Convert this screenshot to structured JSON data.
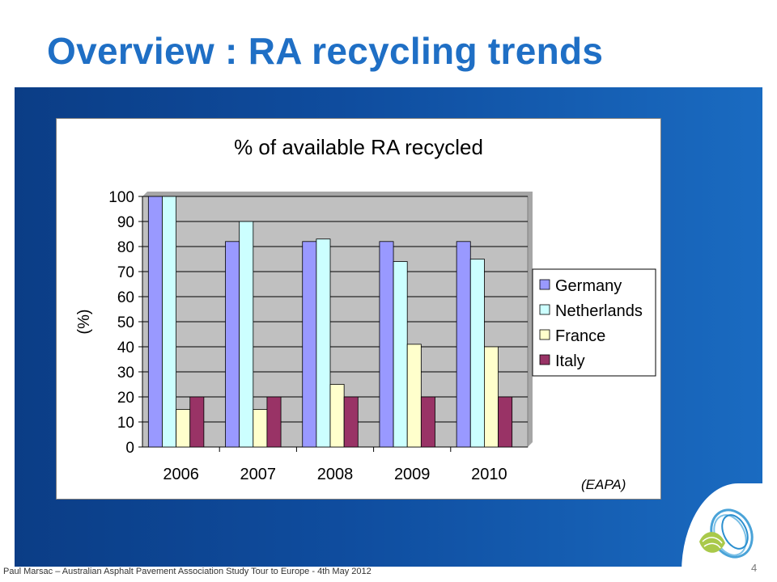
{
  "slide": {
    "title": "Overview : RA recycling trends",
    "footer": "Paul Marsac – Australian Asphalt Pavement Association Study Tour to Europe - 4th May 2012",
    "page_number": "4"
  },
  "chart_data": {
    "type": "bar",
    "title": "% of available RA recycled",
    "xlabel": "",
    "ylabel": "(%)",
    "ylim": [
      0,
      100
    ],
    "yticks": [
      0,
      10,
      20,
      30,
      40,
      50,
      60,
      70,
      80,
      90,
      100
    ],
    "categories": [
      "2006",
      "2007",
      "2008",
      "2009",
      "2010"
    ],
    "series": [
      {
        "name": "Germany",
        "color": "#9999ff",
        "values": [
          100,
          82,
          82,
          82,
          82
        ]
      },
      {
        "name": "Netherlands",
        "color": "#ccffff",
        "values": [
          100,
          90,
          83,
          74,
          75
        ]
      },
      {
        "name": "France",
        "color": "#ffffcc",
        "values": [
          15,
          15,
          25,
          41,
          40
        ]
      },
      {
        "name": "Italy",
        "color": "#993366",
        "values": [
          20,
          20,
          20,
          20,
          20
        ]
      }
    ],
    "grid": true,
    "plot_background": "#c0c0c0",
    "legend_position": "right",
    "annotation": "(EAPA)"
  },
  "colors": {
    "title": "#1f6fc5",
    "panel": "#0f4d9f"
  }
}
